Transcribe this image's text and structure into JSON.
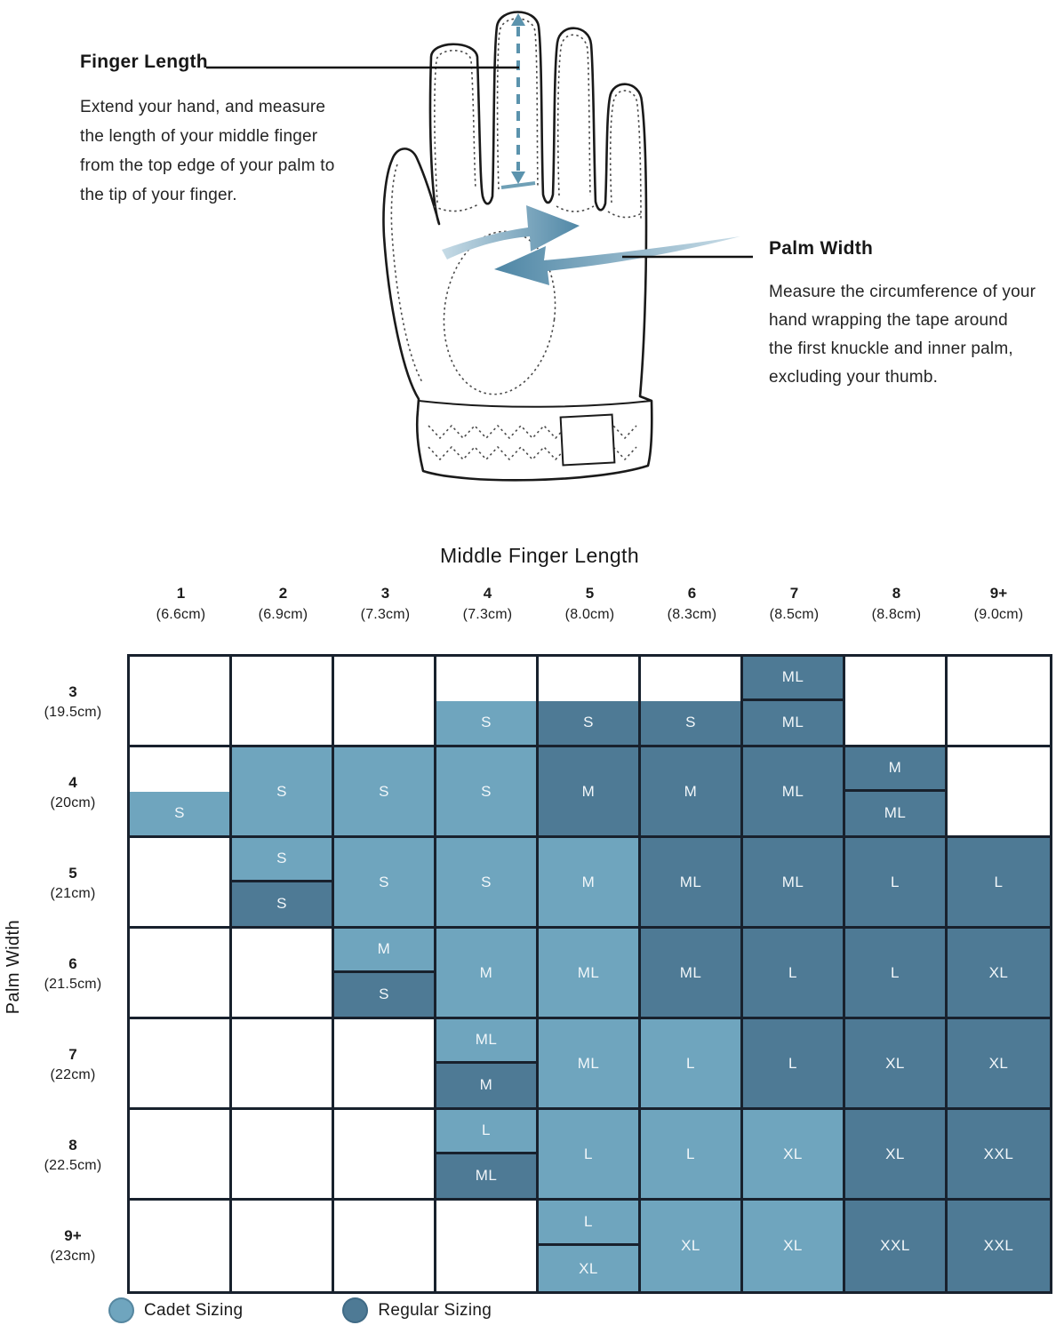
{
  "illustration": {
    "finger_length": {
      "title": "Finger Length",
      "description": "Extend your hand, and measure\nthe length of your middle finger\nfrom the top edge of your palm to\nthe tip of your finger."
    },
    "palm_width": {
      "title": "Palm Width",
      "description": "Measure the circumference of your\nhand wrapping the tape around\nthe first knuckle and inner palm,\nexcluding your thumb."
    },
    "colors": {
      "arrow_dark": "#4E86A5",
      "arrow_light": "#CCDFE9",
      "dashed_line": "#5B93AD",
      "tick": "#6FA0B6",
      "outline": "#1a1a1a",
      "callout": "#111111"
    }
  },
  "chart_data": {
    "type": "heatmap",
    "title": "Middle Finger Length",
    "x_axis_label": "Middle Finger Length",
    "y_axis_label": "Palm Width",
    "columns": [
      {
        "size": "1",
        "cm": "(6.6cm)"
      },
      {
        "size": "2",
        "cm": "(6.9cm)"
      },
      {
        "size": "3",
        "cm": "(7.3cm)"
      },
      {
        "size": "4",
        "cm": "(7.3cm)"
      },
      {
        "size": "5",
        "cm": "(8.0cm)"
      },
      {
        "size": "6",
        "cm": "(8.3cm)"
      },
      {
        "size": "7",
        "cm": "(8.5cm)"
      },
      {
        "size": "8",
        "cm": "(8.8cm)"
      },
      {
        "size": "9+",
        "cm": "(9.0cm)"
      }
    ],
    "rows": [
      {
        "size": "3",
        "cm": "(19.5cm)",
        "cells": [
          [],
          [],
          [],
          [
            {
              "half": "bottom",
              "sizing": "cadet",
              "label": "S"
            }
          ],
          [
            {
              "half": "bottom",
              "sizing": "regular",
              "label": "S"
            }
          ],
          [
            {
              "half": "bottom",
              "sizing": "regular",
              "label": "S"
            }
          ],
          [
            {
              "half": "top",
              "sizing": "regular",
              "label": "ML"
            },
            {
              "half": "bottom",
              "sizing": "regular",
              "label": "ML"
            }
          ],
          [],
          []
        ]
      },
      {
        "size": "4",
        "cm": "(20cm)",
        "cells": [
          [
            {
              "half": "bottom",
              "sizing": "cadet",
              "label": "S"
            }
          ],
          [
            {
              "half": "full",
              "sizing": "cadet",
              "label": "S"
            }
          ],
          [
            {
              "half": "full",
              "sizing": "cadet",
              "label": "S"
            }
          ],
          [
            {
              "half": "full",
              "sizing": "cadet",
              "label": "S"
            }
          ],
          [
            {
              "half": "full",
              "sizing": "regular",
              "label": "M"
            }
          ],
          [
            {
              "half": "full",
              "sizing": "regular",
              "label": "M"
            }
          ],
          [
            {
              "half": "full",
              "sizing": "regular",
              "label": "ML"
            }
          ],
          [
            {
              "half": "top",
              "sizing": "regular",
              "label": "M"
            },
            {
              "half": "bottom",
              "sizing": "regular",
              "label": "ML"
            }
          ],
          []
        ]
      },
      {
        "size": "5",
        "cm": "(21cm)",
        "cells": [
          [],
          [
            {
              "half": "top",
              "sizing": "cadet",
              "label": "S"
            },
            {
              "half": "bottom",
              "sizing": "regular",
              "label": "S"
            }
          ],
          [
            {
              "half": "full",
              "sizing": "cadet",
              "label": "S"
            }
          ],
          [
            {
              "half": "full",
              "sizing": "cadet",
              "label": "S"
            }
          ],
          [
            {
              "half": "full",
              "sizing": "cadet",
              "label": "M"
            }
          ],
          [
            {
              "half": "full",
              "sizing": "regular",
              "label": "ML"
            }
          ],
          [
            {
              "half": "full",
              "sizing": "regular",
              "label": "ML"
            }
          ],
          [
            {
              "half": "full",
              "sizing": "regular",
              "label": "L"
            }
          ],
          [
            {
              "half": "full",
              "sizing": "regular",
              "label": "L"
            }
          ]
        ]
      },
      {
        "size": "6",
        "cm": "(21.5cm)",
        "cells": [
          [],
          [],
          [
            {
              "half": "top",
              "sizing": "cadet",
              "label": "M"
            },
            {
              "half": "bottom",
              "sizing": "regular",
              "label": "S"
            }
          ],
          [
            {
              "half": "full",
              "sizing": "cadet",
              "label": "M"
            }
          ],
          [
            {
              "half": "full",
              "sizing": "cadet",
              "label": "ML"
            }
          ],
          [
            {
              "half": "full",
              "sizing": "regular",
              "label": "ML"
            }
          ],
          [
            {
              "half": "full",
              "sizing": "regular",
              "label": "L"
            }
          ],
          [
            {
              "half": "full",
              "sizing": "regular",
              "label": "L"
            }
          ],
          [
            {
              "half": "full",
              "sizing": "regular",
              "label": "XL"
            }
          ]
        ]
      },
      {
        "size": "7",
        "cm": "(22cm)",
        "cells": [
          [],
          [],
          [],
          [
            {
              "half": "top",
              "sizing": "cadet",
              "label": "ML"
            },
            {
              "half": "bottom",
              "sizing": "regular",
              "label": "M"
            }
          ],
          [
            {
              "half": "full",
              "sizing": "cadet",
              "label": "ML"
            }
          ],
          [
            {
              "half": "full",
              "sizing": "cadet",
              "label": "L"
            }
          ],
          [
            {
              "half": "full",
              "sizing": "regular",
              "label": "L"
            }
          ],
          [
            {
              "half": "full",
              "sizing": "regular",
              "label": "XL"
            }
          ],
          [
            {
              "half": "full",
              "sizing": "regular",
              "label": "XL"
            }
          ]
        ]
      },
      {
        "size": "8",
        "cm": "(22.5cm)",
        "cells": [
          [],
          [],
          [],
          [
            {
              "half": "top",
              "sizing": "cadet",
              "label": "L"
            },
            {
              "half": "bottom",
              "sizing": "regular",
              "label": "ML"
            }
          ],
          [
            {
              "half": "full",
              "sizing": "cadet",
              "label": "L"
            }
          ],
          [
            {
              "half": "full",
              "sizing": "cadet",
              "label": "L"
            }
          ],
          [
            {
              "half": "full",
              "sizing": "cadet",
              "label": "XL"
            }
          ],
          [
            {
              "half": "full",
              "sizing": "regular",
              "label": "XL"
            }
          ],
          [
            {
              "half": "full",
              "sizing": "regular",
              "label": "XXL"
            }
          ]
        ]
      },
      {
        "size": "9+",
        "cm": "(23cm)",
        "cells": [
          [],
          [],
          [],
          [],
          [
            {
              "half": "top",
              "sizing": "cadet",
              "label": "L"
            },
            {
              "half": "bottom",
              "sizing": "cadet",
              "label": "XL"
            }
          ],
          [
            {
              "half": "full",
              "sizing": "cadet",
              "label": "XL"
            }
          ],
          [
            {
              "half": "full",
              "sizing": "cadet",
              "label": "XL"
            }
          ],
          [
            {
              "half": "full",
              "sizing": "regular",
              "label": "XXL"
            }
          ],
          [
            {
              "half": "full",
              "sizing": "regular",
              "label": "XXL"
            }
          ]
        ]
      }
    ],
    "legend": [
      {
        "type": "cadet",
        "label": "Cadet Sizing"
      },
      {
        "type": "regular",
        "label": "Regular Sizing"
      }
    ],
    "colors": {
      "cadet": "#6FA5BE",
      "regular": "#4E7A95",
      "line": "#18212D"
    }
  }
}
